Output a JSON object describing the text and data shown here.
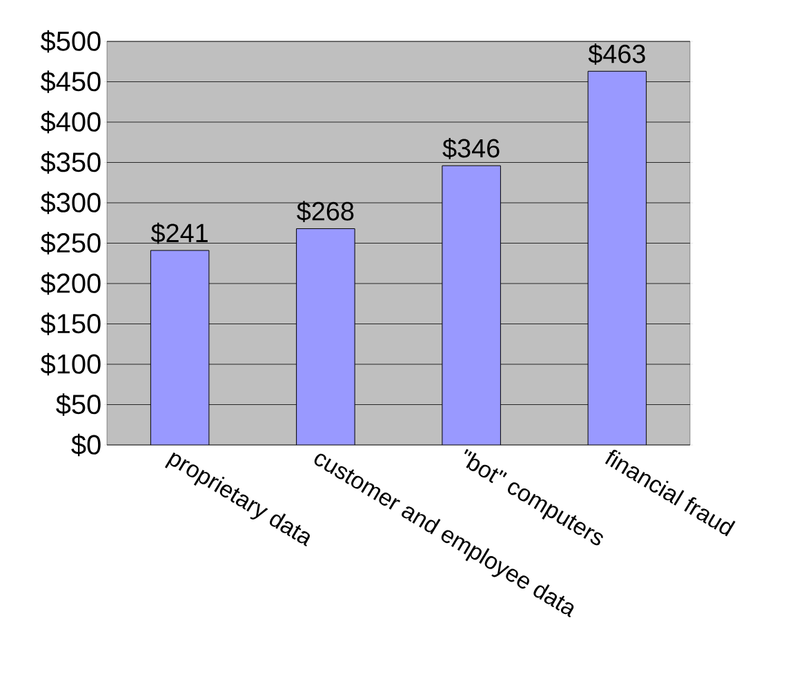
{
  "chart_data": {
    "type": "bar",
    "categories": [
      "proprietary data",
      "customer and employee data",
      "\"bot\" computers",
      "financial fraud"
    ],
    "values": [
      241,
      268,
      346,
      463
    ],
    "color": "#9999ff",
    "value_labels": [
      "$241",
      "$268",
      "$346",
      "$463"
    ],
    "ylim": [
      0,
      500
    ],
    "yticks": [
      {
        "value": 0,
        "label": "$0"
      },
      {
        "value": 50,
        "label": "$50"
      },
      {
        "value": 100,
        "label": "$100"
      },
      {
        "value": 150,
        "label": "$150"
      },
      {
        "value": 200,
        "label": "$200"
      },
      {
        "value": 250,
        "label": "$250"
      },
      {
        "value": 300,
        "label": "$300"
      },
      {
        "value": 350,
        "label": "$350"
      },
      {
        "value": 400,
        "label": "$400"
      },
      {
        "value": 450,
        "label": "$450"
      },
      {
        "value": 500,
        "label": "$500"
      }
    ],
    "grid": "y"
  }
}
